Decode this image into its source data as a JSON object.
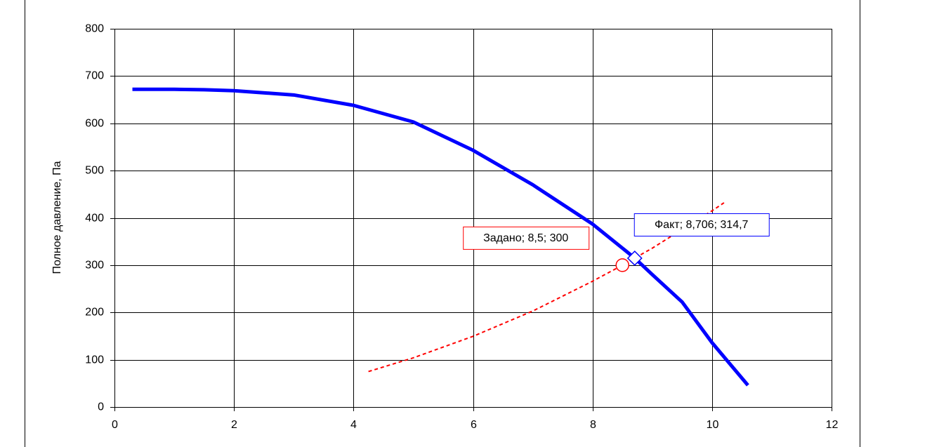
{
  "chart_data": {
    "type": "line",
    "y_label": "Полное давление, Па",
    "xlim": [
      0,
      12
    ],
    "xticks": [
      0,
      2,
      4,
      6,
      8,
      10,
      12
    ],
    "ylim": [
      0,
      800
    ],
    "yticks": [
      0,
      100,
      200,
      300,
      400,
      500,
      600,
      700,
      800
    ],
    "grid": true,
    "series": [
      {
        "color": "#0000ff",
        "style": "solid",
        "x": [
          0.3,
          1,
          1.5,
          2,
          3,
          4,
          5,
          6,
          7,
          8,
          8.706,
          9,
          9.5,
          10,
          10.6
        ],
        "values": [
          672,
          672,
          671,
          669,
          660,
          638,
          603,
          543,
          470,
          387,
          315,
          280,
          222,
          136,
          46
        ]
      },
      {
        "color": "#ff0000",
        "style": "dashed",
        "x": [
          4.25,
          5,
          6,
          7,
          8,
          8.5,
          9,
          10,
          10.2
        ],
        "values": [
          75,
          104,
          149.5,
          203,
          266,
          300,
          336,
          415,
          432
        ]
      }
    ],
    "points": [
      {
        "x": 8.5,
        "y": 300,
        "color": "#ff0000",
        "marker": "circle",
        "label": "Задано; 8,5; 300"
      },
      {
        "x": 8.706,
        "y": 314.7,
        "color": "#0000ff",
        "marker": "diamond",
        "label": "Факт; 8,706; 314,7"
      }
    ]
  }
}
